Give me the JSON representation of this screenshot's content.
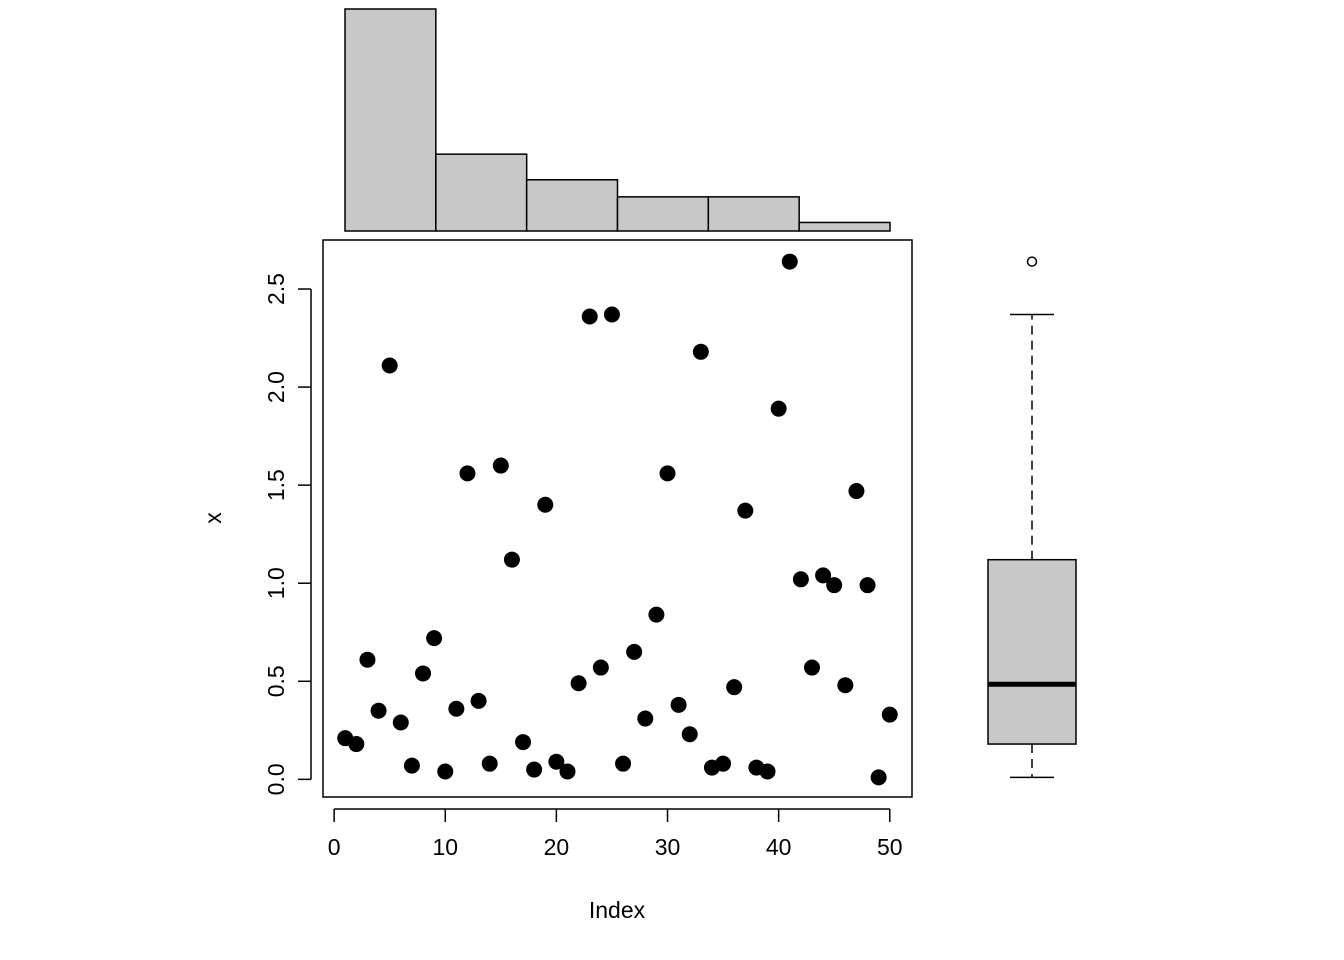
{
  "chart_data": [
    {
      "type": "scatter",
      "xlabel": "Index",
      "ylabel": "x",
      "xlim": [
        -1,
        52
      ],
      "ylim": [
        -0.09,
        2.75
      ],
      "xticks": [
        "0",
        "10",
        "20",
        "30",
        "40",
        "50"
      ],
      "yticks": [
        "0.0",
        "0.5",
        "1.0",
        "1.5",
        "2.0",
        "2.5"
      ],
      "marker_color": "#000000",
      "x": [
        1,
        2,
        3,
        4,
        5,
        6,
        7,
        8,
        9,
        10,
        11,
        12,
        13,
        14,
        15,
        16,
        17,
        18,
        19,
        20,
        21,
        22,
        23,
        24,
        25,
        26,
        27,
        28,
        29,
        30,
        31,
        32,
        33,
        34,
        35,
        36,
        37,
        38,
        39,
        40,
        41,
        42,
        43,
        44,
        45,
        46,
        47,
        48,
        49,
        50
      ],
      "y": [
        0.21,
        0.18,
        0.61,
        0.35,
        2.11,
        0.29,
        0.07,
        0.54,
        0.72,
        0.04,
        0.36,
        1.56,
        0.4,
        0.08,
        1.6,
        1.12,
        0.19,
        0.05,
        1.4,
        0.09,
        0.04,
        0.49,
        2.36,
        0.57,
        2.37,
        0.08,
        0.65,
        0.31,
        0.84,
        1.56,
        0.38,
        0.23,
        2.18,
        0.06,
        0.08,
        0.47,
        1.37,
        0.06,
        0.04,
        1.89,
        2.64,
        1.02,
        0.57,
        1.04,
        0.99,
        0.48,
        1.47,
        0.99,
        0.01,
        0.33
      ]
    },
    {
      "type": "histogram",
      "bins": [
        [
          0.0,
          0.5
        ],
        [
          0.5,
          1.0
        ],
        [
          1.0,
          1.5
        ],
        [
          1.5,
          2.0
        ],
        [
          2.0,
          2.5
        ],
        [
          2.5,
          3.0
        ]
      ],
      "counts": [
        26,
        9,
        6,
        4,
        4,
        1
      ],
      "fill_color": "#c8c8c8"
    },
    {
      "type": "boxplot",
      "min": 0.01,
      "q1": 0.18,
      "median": 0.485,
      "q3": 1.12,
      "whisker_high": 2.37,
      "outliers": [
        2.64
      ],
      "fill_color": "#c8c8c8"
    }
  ]
}
